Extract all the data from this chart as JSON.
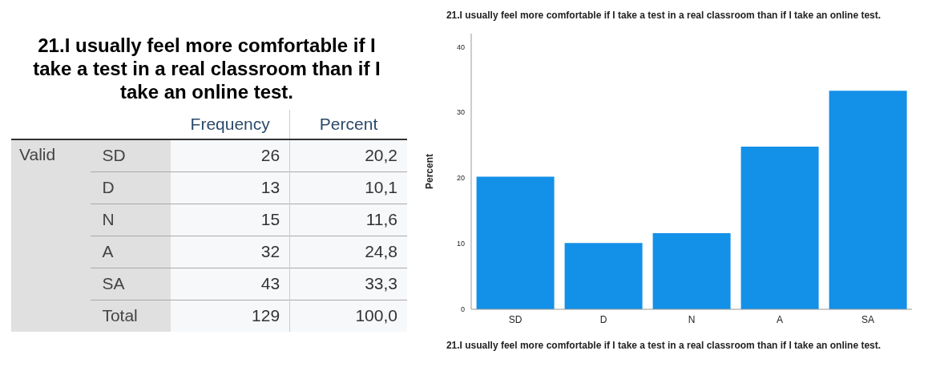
{
  "chart_data": [
    {
      "type": "other",
      "title": "21.I usually feel more comfortable if I take a test in a real classroom than if I take an online test.",
      "categories": [
        "SD",
        "D",
        "N",
        "A",
        "SA",
        "Total"
      ],
      "annotations": [
        "Valid"
      ],
      "data_labels": true,
      "series": [
        {
          "name": "Frequency",
          "values": [
            26,
            13,
            15,
            32,
            43,
            129
          ]
        },
        {
          "name": "Percent",
          "values": [
            20.2,
            10.1,
            11.6,
            24.8,
            33.3,
            100.0
          ],
          "value_labels": [
            "20,2",
            "10,1",
            "11,6",
            "24,8",
            "33,3",
            "100,0"
          ]
        }
      ]
    },
    {
      "type": "bar",
      "title": "21.I usually feel more comfortable if I take a test in a real classroom than if I take an online test.",
      "xlabel": "21.I usually feel more comfortable if I take a test in a real classroom than if I take an online test.",
      "ylabel": "Percent",
      "categories": [
        "SD",
        "D",
        "N",
        "A",
        "SA"
      ],
      "values": [
        20.2,
        10.1,
        11.6,
        24.8,
        33.3
      ],
      "color": "#1390e8",
      "ylim": [
        0,
        42
      ],
      "yticks": [
        0,
        10,
        20,
        30,
        40
      ],
      "grid": false
    }
  ]
}
